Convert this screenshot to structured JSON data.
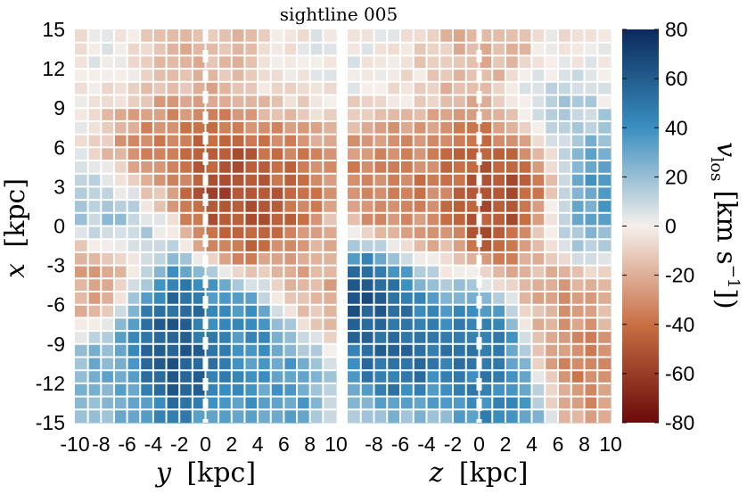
{
  "chart_data": {
    "type": "heatmap",
    "title": "sightline 005",
    "panels": [
      {
        "name": "y-panel",
        "xlabel_var": "y",
        "xlabel_unit": "[kpc]",
        "ylabel_var": "x",
        "ylabel_unit": "[kpc]",
        "xlim": [
          -10,
          10
        ],
        "ylim": [
          -15,
          15
        ],
        "xticks": [
          "-10",
          "-8",
          "-6",
          "-4",
          "-2",
          "0",
          "2",
          "4",
          "6",
          "8",
          "10"
        ],
        "yticks": [
          "15",
          "12",
          "9",
          "6",
          "3",
          "0",
          "-3",
          "-6",
          "-9",
          "-12",
          "-15"
        ],
        "features": [
          {
            "x": 2,
            "y": 3,
            "v": -65
          },
          {
            "x": 4,
            "y": 1,
            "v": -55
          },
          {
            "x": 0,
            "y": 6,
            "v": -45
          },
          {
            "x": -4,
            "y": 5,
            "v": -35
          },
          {
            "x": 6,
            "y": 4,
            "v": -40
          },
          {
            "x": -7,
            "y": 1,
            "v": 25
          },
          {
            "x": -3,
            "y": -7,
            "v": 65
          },
          {
            "x": -2,
            "y": -11,
            "v": 70
          },
          {
            "x": 3,
            "y": -8,
            "v": 45
          },
          {
            "x": 5,
            "y": -13,
            "v": 40
          },
          {
            "x": -8,
            "y": -12,
            "v": 30
          },
          {
            "x": 8,
            "y": -4,
            "v": -25
          },
          {
            "x": -8,
            "y": -4,
            "v": -30
          },
          {
            "x": 0,
            "y": 13,
            "v": -20
          }
        ]
      },
      {
        "name": "z-panel",
        "xlabel_var": "z",
        "xlabel_unit": "[kpc]",
        "xlim": [
          -10,
          10
        ],
        "ylim": [
          -15,
          15
        ],
        "xticks": [
          "-8",
          "-6",
          "-4",
          "-2",
          "0",
          "2",
          "4",
          "6",
          "8",
          "10"
        ],
        "features": [
          {
            "x": 3,
            "y": 4,
            "v": -70
          },
          {
            "x": 2,
            "y": 1,
            "v": -60
          },
          {
            "x": 0,
            "y": 5,
            "v": -45
          },
          {
            "x": -5,
            "y": 3,
            "v": -40
          },
          {
            "x": -8,
            "y": 4,
            "v": -35
          },
          {
            "x": 9,
            "y": 3,
            "v": 45
          },
          {
            "x": 7,
            "y": 0,
            "v": 25
          },
          {
            "x": 5,
            "y": 7,
            "v": 20
          },
          {
            "x": -9,
            "y": -6,
            "v": 70
          },
          {
            "x": -6,
            "y": -10,
            "v": 60
          },
          {
            "x": 0,
            "y": -9,
            "v": 55
          },
          {
            "x": 2,
            "y": -13,
            "v": 50
          },
          {
            "x": 7,
            "y": -11,
            "v": -40
          },
          {
            "x": 6,
            "y": -5,
            "v": -30
          },
          {
            "x": 0,
            "y": 13,
            "v": -20
          }
        ]
      }
    ],
    "colorbar": {
      "label_var": "v",
      "label_sub": "los",
      "label_unit": "[km s",
      "label_exp": "−1",
      "label_close": "])",
      "range": [
        -80,
        80
      ],
      "ticks": [
        "80",
        "60",
        "40",
        "20",
        "0",
        "-20",
        "-40",
        "-60",
        "-80"
      ],
      "colors": {
        "neg_max": "#6b0a0a",
        "neg_mid": "#c86f44",
        "neutral": "#f5efeb",
        "pos_mid": "#3a8fc0",
        "pos_max": "#0b2a5c"
      }
    },
    "grid": true
  }
}
